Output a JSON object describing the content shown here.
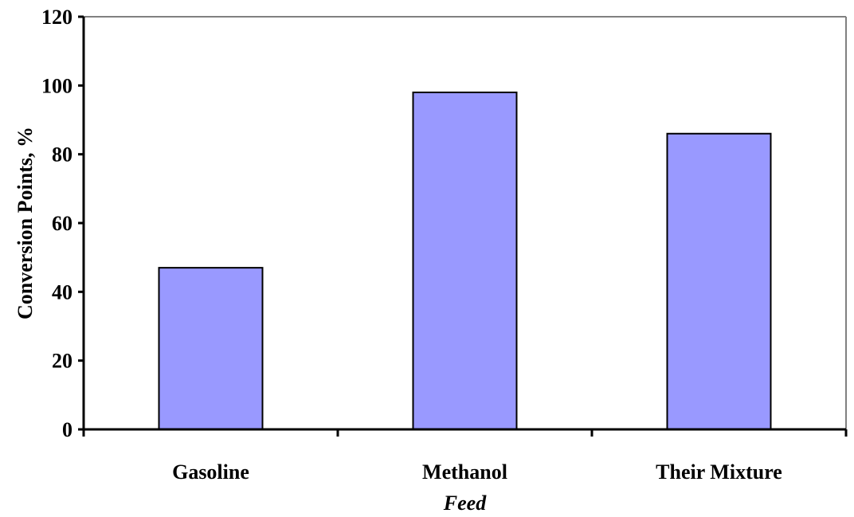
{
  "chart_data": {
    "type": "bar",
    "categories": [
      "Gasoline",
      "Methanol",
      "Their Mixture"
    ],
    "values": [
      47,
      98,
      86
    ],
    "title": "",
    "xlabel": "Feed",
    "ylabel": "Conversion Points, %",
    "ylim": [
      0,
      120
    ],
    "yticks": [
      "0",
      "20",
      "40",
      "60",
      "80",
      "100",
      "120"
    ],
    "bar_color": "#9999ff",
    "grid": false,
    "legend": "none"
  }
}
